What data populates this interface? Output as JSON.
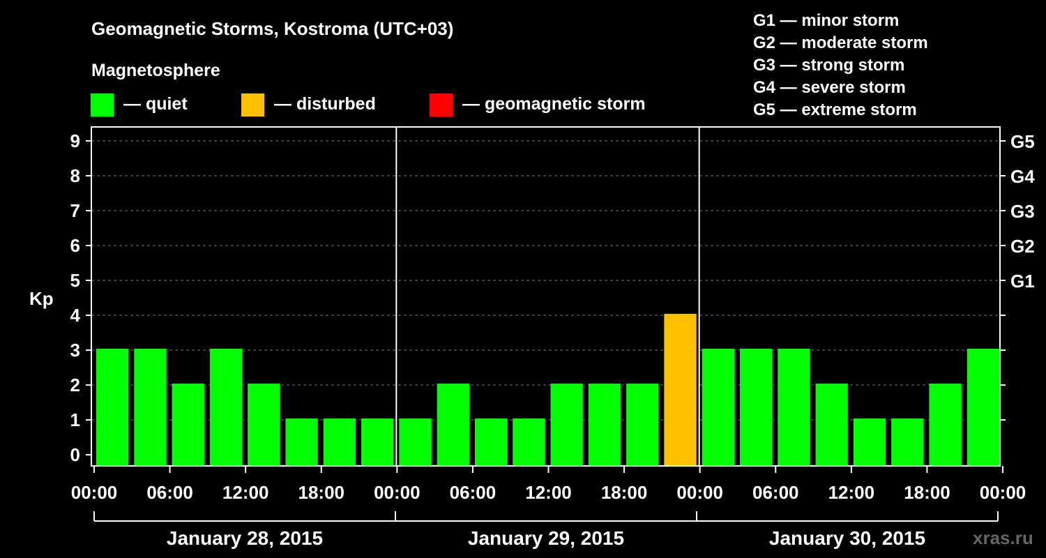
{
  "header": {
    "title": "Geomagnetic Storms, Kostroma (UTC+03)",
    "subtitle": "Magnetosphere"
  },
  "legend": [
    {
      "label": "— quiet",
      "color": "#00ff00"
    },
    {
      "label": "— disturbed",
      "color": "#ffc000"
    },
    {
      "label": "— geomagnetic storm",
      "color": "#ff0000"
    }
  ],
  "storm_scale": [
    "G1 — minor storm",
    "G2 — moderate storm",
    "G3 — strong storm",
    "G4 — severe storm",
    "G5 — extreme storm"
  ],
  "watermark": "xras.ru",
  "chart_data": {
    "type": "bar",
    "ylabel": "Kp",
    "ylim": [
      0,
      9
    ],
    "yticks": [
      "0",
      "1",
      "2",
      "3",
      "4",
      "5",
      "6",
      "7",
      "8",
      "9"
    ],
    "right_ticks": [
      {
        "kp": 5,
        "label": "G1"
      },
      {
        "kp": 6,
        "label": "G2"
      },
      {
        "kp": 7,
        "label": "G3"
      },
      {
        "kp": 8,
        "label": "G4"
      },
      {
        "kp": 9,
        "label": "G5"
      }
    ],
    "grid": "dashed horizontal",
    "xticks": [
      "00:00",
      "06:00",
      "12:00",
      "18:00",
      "00:00",
      "06:00",
      "12:00",
      "18:00",
      "00:00",
      "06:00",
      "12:00",
      "18:00",
      "00:00"
    ],
    "days": [
      "January 28, 2015",
      "January 29, 2015",
      "January 30, 2015"
    ],
    "interval_hours": 3,
    "values": [
      3,
      3,
      2,
      3,
      2,
      1,
      1,
      1,
      1,
      2,
      1,
      1,
      2,
      2,
      2,
      4,
      3,
      3,
      3,
      2,
      1,
      1,
      2,
      3
    ],
    "colors": {
      "quiet": "#00ff00",
      "disturbed": "#ffc000",
      "storm": "#ff0000"
    }
  }
}
